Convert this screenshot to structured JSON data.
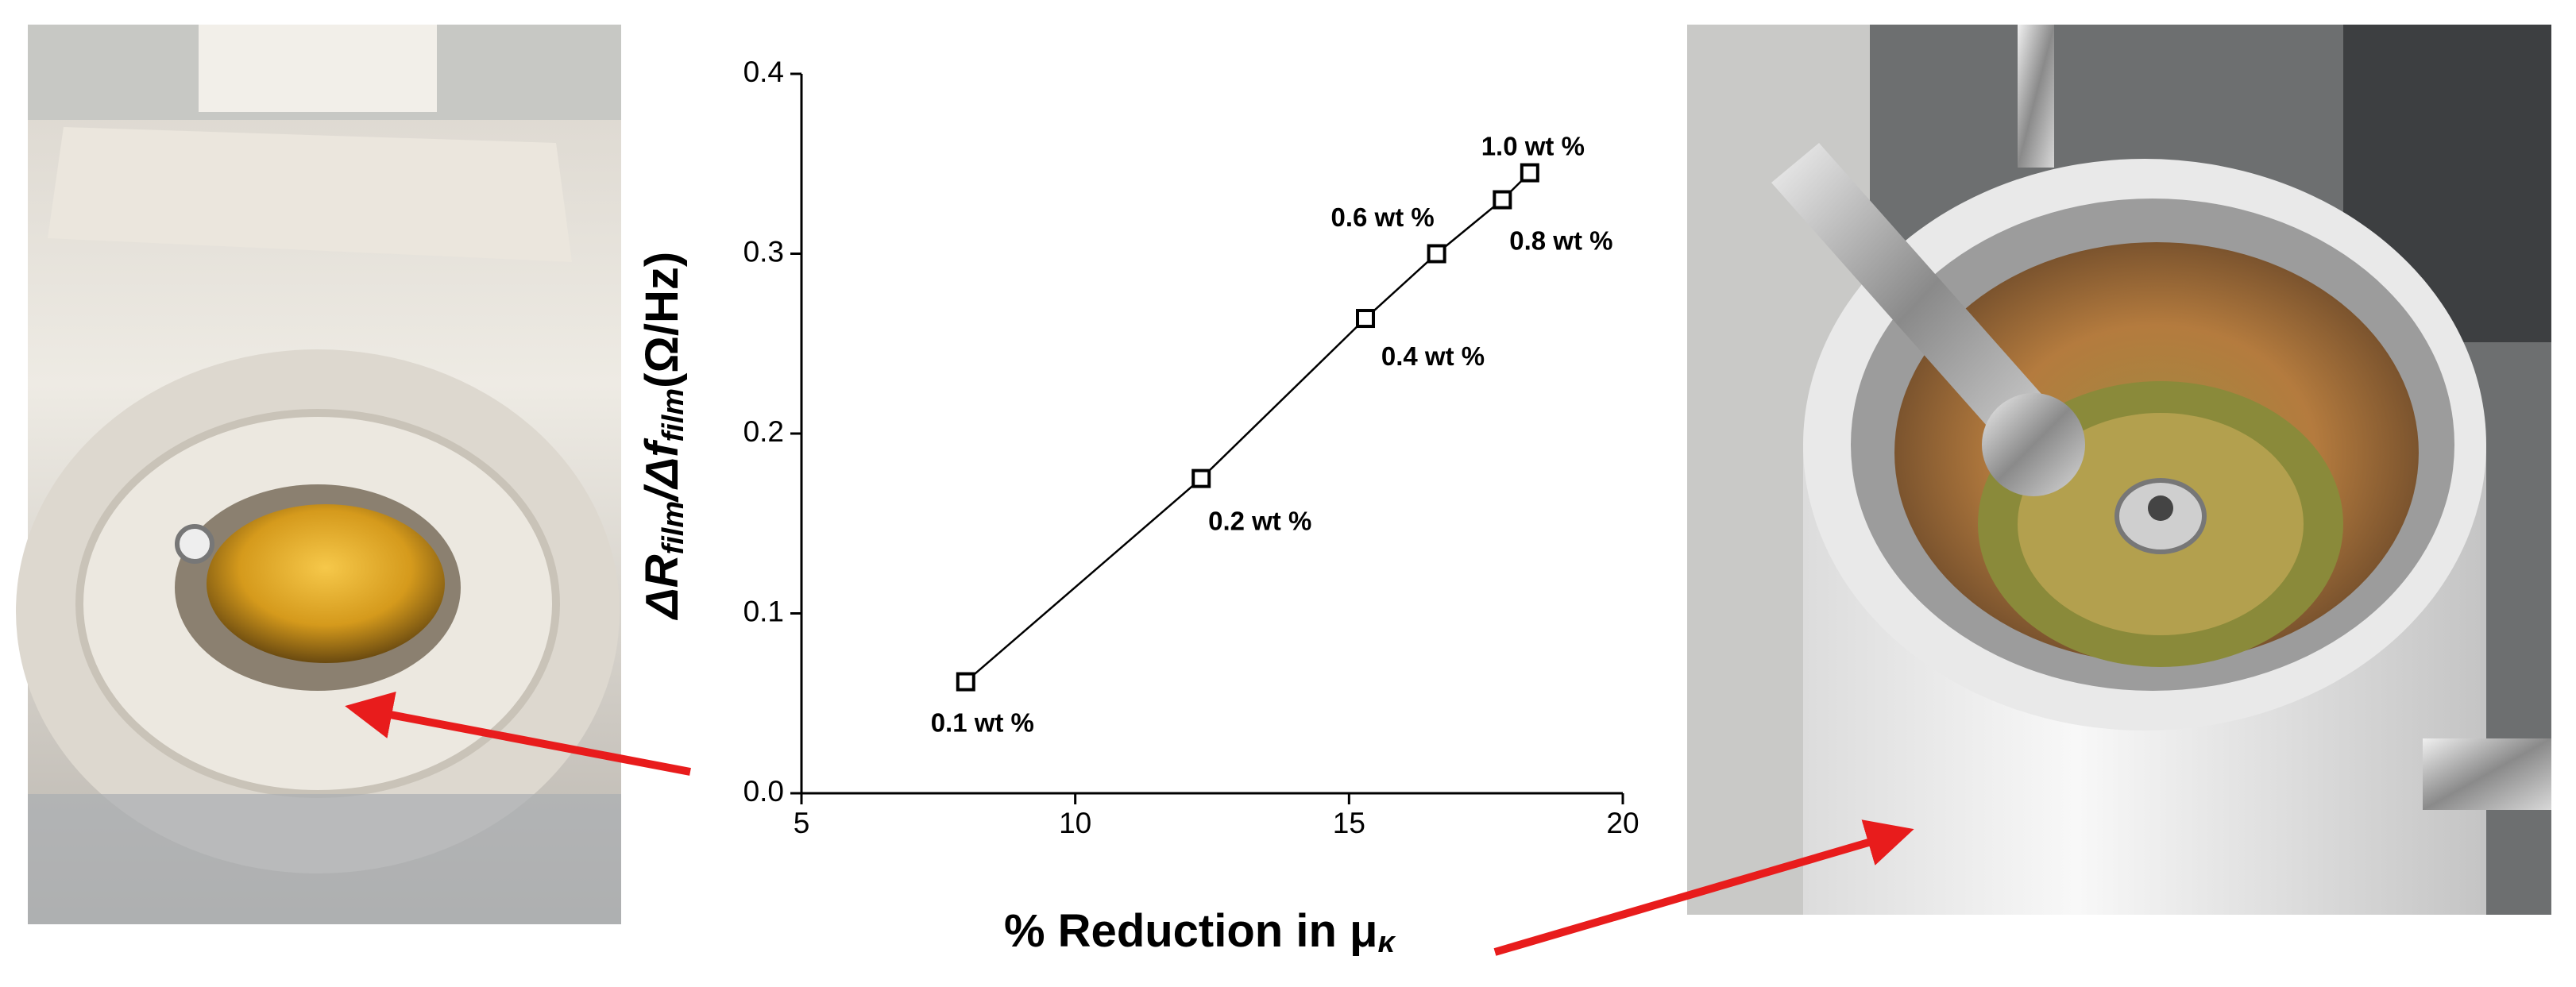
{
  "chart_data": {
    "type": "line",
    "x_label": [
      "% Reduction in μ",
      "κ"
    ],
    "y_label": [
      "ΔR",
      "film",
      "/Δf",
      "film",
      "(Ω/Hz)"
    ],
    "x": [
      8.0,
      12.3,
      15.3,
      16.6,
      17.8,
      18.3
    ],
    "values": [
      0.062,
      0.175,
      0.264,
      0.3,
      0.33,
      0.345
    ],
    "point_labels": [
      "0.1 wt %",
      "0.2 wt %",
      "0.4 wt %",
      "0.6 wt %",
      "0.8 wt %",
      "1.0 wt %"
    ],
    "color": "#000000",
    "xlim": [
      5,
      20
    ],
    "xticks": [
      5,
      10,
      15,
      20
    ],
    "ylim": [
      0,
      0.4
    ],
    "yticks": [
      {
        "value": 0,
        "label": "0.0"
      },
      0.1,
      0.2,
      0.3,
      0.4
    ],
    "grid": false
  }
}
